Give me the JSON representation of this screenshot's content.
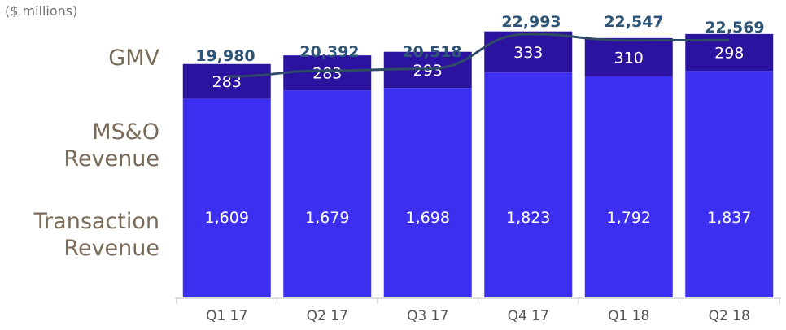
{
  "unit_label": "($ millions)",
  "row_labels": {
    "gmv": "GMV",
    "mso_line1": "MS&O",
    "mso_line2": "Revenue",
    "tr_line1": "Transaction",
    "tr_line2": "Revenue"
  },
  "colors": {
    "transaction": "#3d2ff0",
    "mso": "#2b139f",
    "gmv_line": "#2f4b66"
  },
  "chart_data": {
    "type": "bar",
    "stacked": true,
    "categories": [
      "Q1 17",
      "Q2 17",
      "Q3 17",
      "Q4 17",
      "Q1 18",
      "Q2 18"
    ],
    "series": [
      {
        "name": "Transaction Revenue",
        "values": [
          1609,
          1679,
          1698,
          1823,
          1792,
          1837
        ],
        "labels": [
          "1,609",
          "1,679",
          "1,698",
          "1,823",
          "1,792",
          "1,837"
        ]
      },
      {
        "name": "MS&O Revenue",
        "values": [
          283,
          283,
          293,
          333,
          310,
          298
        ],
        "labels": [
          "283",
          "283",
          "293",
          "333",
          "310",
          "298"
        ]
      }
    ],
    "line": {
      "name": "GMV",
      "values": [
        19980,
        20392,
        20518,
        22993,
        22547,
        22569
      ],
      "labels": [
        "19,980",
        "20,392",
        "20,518",
        "22,993",
        "22,547",
        "22,569"
      ]
    },
    "ylim": [
      0,
      2200
    ],
    "grid": false
  }
}
